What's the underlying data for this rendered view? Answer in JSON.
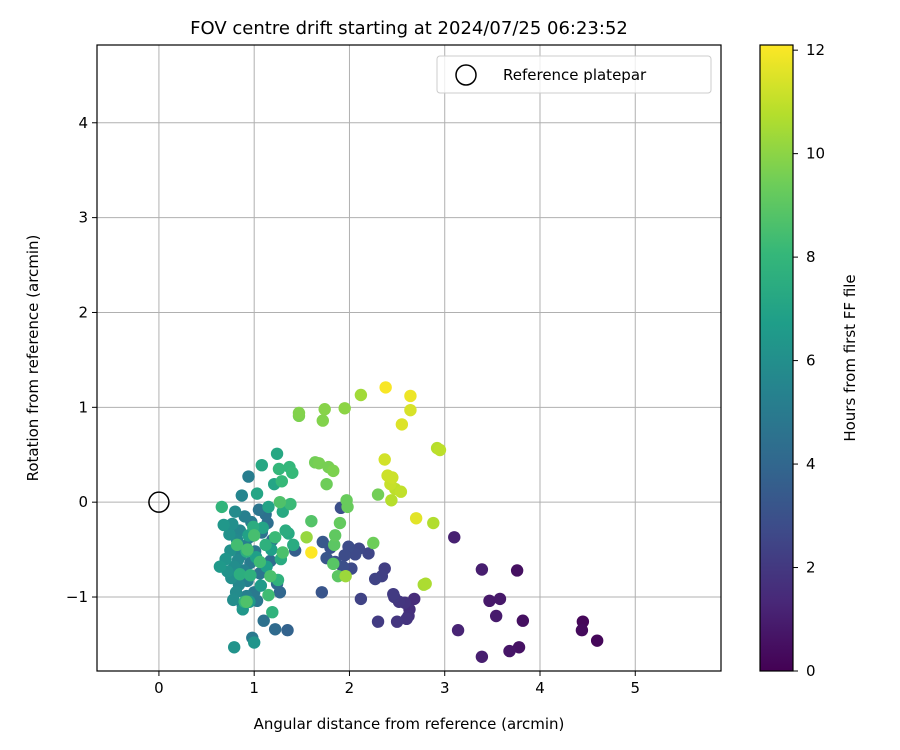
{
  "chart_data": {
    "type": "scatter",
    "title": "FOV centre drift starting at 2024/07/25 06:23:52",
    "xlabel": "Angular distance from reference (arcmin)",
    "ylabel": "Rotation from reference (arcmin)",
    "xlim": [
      -0.65,
      5.9
    ],
    "ylim": [
      -1.78,
      4.82
    ],
    "xticks": [
      0,
      1,
      2,
      3,
      4,
      5
    ],
    "yticks": [
      -1,
      0,
      1,
      2,
      3,
      4
    ],
    "xtick_labels": [
      "0",
      "1",
      "2",
      "3",
      "4",
      "5"
    ],
    "ytick_labels": [
      "−1",
      "0",
      "1",
      "2",
      "3",
      "4"
    ],
    "grid": true,
    "legend": {
      "position": "top-right",
      "entries": [
        "Reference platepar"
      ]
    },
    "reference_point": {
      "x": 0,
      "y": 0,
      "label": "Reference platepar"
    },
    "colorbar": {
      "label": "Hours from first FF file",
      "min": 0,
      "max": 12.1,
      "ticks": [
        0,
        2,
        4,
        6,
        8,
        10,
        12
      ],
      "tick_labels": [
        "0",
        "2",
        "4",
        "6",
        "8",
        "10",
        "12"
      ],
      "colormap": "viridis"
    },
    "series": [
      {
        "color_value": "hours",
        "points": [
          {
            "x": 4.6,
            "y": -1.46,
            "c": 0.2
          },
          {
            "x": 4.45,
            "y": -1.26,
            "c": 0.2
          },
          {
            "x": 4.44,
            "y": -1.35,
            "c": 0.3
          },
          {
            "x": 3.82,
            "y": -1.25,
            "c": 0.5
          },
          {
            "x": 3.78,
            "y": -1.53,
            "c": 0.6
          },
          {
            "x": 3.76,
            "y": -0.72,
            "c": 0.5
          },
          {
            "x": 3.68,
            "y": -1.57,
            "c": 0.7
          },
          {
            "x": 3.58,
            "y": -1.02,
            "c": 0.8
          },
          {
            "x": 3.54,
            "y": -1.2,
            "c": 0.9
          },
          {
            "x": 3.47,
            "y": -1.04,
            "c": 0.8
          },
          {
            "x": 3.39,
            "y": -0.71,
            "c": 1.0
          },
          {
            "x": 3.39,
            "y": -1.63,
            "c": 1.0
          },
          {
            "x": 3.14,
            "y": -1.35,
            "c": 1.2
          },
          {
            "x": 3.1,
            "y": -0.37,
            "c": 1.1
          },
          {
            "x": 2.68,
            "y": -1.02,
            "c": 1.5
          },
          {
            "x": 2.63,
            "y": -1.13,
            "c": 1.6
          },
          {
            "x": 2.62,
            "y": -1.2,
            "c": 1.7
          },
          {
            "x": 2.6,
            "y": -1.23,
            "c": 1.8
          },
          {
            "x": 2.58,
            "y": -1.06,
            "c": 1.8
          },
          {
            "x": 2.52,
            "y": -1.05,
            "c": 1.9
          },
          {
            "x": 2.5,
            "y": -1.26,
            "c": 1.9
          },
          {
            "x": 2.47,
            "y": -1.0,
            "c": 2.0
          },
          {
            "x": 2.46,
            "y": -0.97,
            "c": 2.1
          },
          {
            "x": 2.37,
            "y": -0.7,
            "c": 2.2
          },
          {
            "x": 2.34,
            "y": -0.78,
            "c": 2.3
          },
          {
            "x": 2.3,
            "y": -1.26,
            "c": 2.1
          },
          {
            "x": 2.27,
            "y": -0.81,
            "c": 2.4
          },
          {
            "x": 2.2,
            "y": -0.54,
            "c": 2.5
          },
          {
            "x": 2.12,
            "y": -1.02,
            "c": 2.4
          },
          {
            "x": 2.1,
            "y": -0.49,
            "c": 2.6
          },
          {
            "x": 2.06,
            "y": -0.55,
            "c": 2.7
          },
          {
            "x": 2.02,
            "y": -0.7,
            "c": 2.7
          },
          {
            "x": 1.99,
            "y": -0.47,
            "c": 2.8
          },
          {
            "x": 1.95,
            "y": -0.56,
            "c": 2.8
          },
          {
            "x": 1.93,
            "y": -0.68,
            "c": 2.9
          },
          {
            "x": 1.91,
            "y": -0.06,
            "c": 2.9
          },
          {
            "x": 1.85,
            "y": -0.63,
            "c": 3.0
          },
          {
            "x": 1.8,
            "y": -0.48,
            "c": 3.1
          },
          {
            "x": 1.76,
            "y": -0.59,
            "c": 3.2
          },
          {
            "x": 1.72,
            "y": -0.42,
            "c": 3.3
          },
          {
            "x": 1.71,
            "y": -0.95,
            "c": 3.2
          },
          {
            "x": 1.43,
            "y": -0.51,
            "c": 3.6
          },
          {
            "x": 1.35,
            "y": -1.35,
            "c": 3.8
          },
          {
            "x": 1.27,
            "y": -0.95,
            "c": 4.0
          },
          {
            "x": 1.24,
            "y": -0.86,
            "c": 4.1
          },
          {
            "x": 1.22,
            "y": -1.34,
            "c": 4.2
          },
          {
            "x": 1.19,
            "y": -0.4,
            "c": 4.2
          },
          {
            "x": 1.17,
            "y": -0.62,
            "c": 4.3
          },
          {
            "x": 1.14,
            "y": -0.22,
            "c": 4.4
          },
          {
            "x": 1.12,
            "y": -0.13,
            "c": 4.5
          },
          {
            "x": 1.1,
            "y": -1.25,
            "c": 4.5
          },
          {
            "x": 1.08,
            "y": -0.32,
            "c": 4.6
          },
          {
            "x": 1.06,
            "y": -0.75,
            "c": 4.7
          },
          {
            "x": 1.05,
            "y": -0.08,
            "c": 4.7
          },
          {
            "x": 1.03,
            "y": -1.04,
            "c": 4.8
          },
          {
            "x": 1.01,
            "y": -0.52,
            "c": 4.8
          },
          {
            "x": 1.0,
            "y": -0.95,
            "c": 4.9
          },
          {
            "x": 0.98,
            "y": -1.43,
            "c": 4.9
          },
          {
            "x": 0.97,
            "y": -0.21,
            "c": 5.0
          },
          {
            "x": 0.96,
            "y": -0.64,
            "c": 5.0
          },
          {
            "x": 0.95,
            "y": -0.37,
            "c": 5.1
          },
          {
            "x": 0.94,
            "y": 0.27,
            "c": 5.1
          },
          {
            "x": 0.93,
            "y": -0.83,
            "c": 5.2
          },
          {
            "x": 0.92,
            "y": -0.99,
            "c": 5.2
          },
          {
            "x": 0.91,
            "y": -0.46,
            "c": 5.3
          },
          {
            "x": 0.9,
            "y": -0.15,
            "c": 5.3
          },
          {
            "x": 0.89,
            "y": -0.72,
            "c": 5.4
          },
          {
            "x": 0.88,
            "y": -1.09,
            "c": 5.4
          },
          {
            "x": 0.87,
            "y": 0.07,
            "c": 5.5
          },
          {
            "x": 0.86,
            "y": -0.56,
            "c": 5.5
          },
          {
            "x": 0.85,
            "y": -0.3,
            "c": 5.6
          },
          {
            "x": 0.84,
            "y": -0.87,
            "c": 5.6
          },
          {
            "x": 0.83,
            "y": -0.61,
            "c": 5.7
          },
          {
            "x": 0.82,
            "y": -0.4,
            "c": 5.7
          },
          {
            "x": 0.81,
            "y": -0.95,
            "c": 5.8
          },
          {
            "x": 0.8,
            "y": -0.1,
            "c": 5.8
          },
          {
            "x": 0.79,
            "y": -0.68,
            "c": 5.9
          },
          {
            "x": 0.78,
            "y": -1.03,
            "c": 5.9
          },
          {
            "x": 0.77,
            "y": -0.23,
            "c": 6.0
          },
          {
            "x": 0.76,
            "y": -0.8,
            "c": 6.0
          },
          {
            "x": 0.75,
            "y": -0.51,
            "c": 6.1
          },
          {
            "x": 0.74,
            "y": -0.34,
            "c": 6.1
          },
          {
            "x": 0.72,
            "y": -0.73,
            "c": 6.2
          },
          {
            "x": 0.7,
            "y": -0.6,
            "c": 6.3
          },
          {
            "x": 0.68,
            "y": -0.24,
            "c": 6.4
          },
          {
            "x": 0.64,
            "y": -0.68,
            "c": 6.5
          },
          {
            "x": 0.79,
            "y": -1.53,
            "c": 6.2
          },
          {
            "x": 1.0,
            "y": -1.48,
            "c": 6.3
          },
          {
            "x": 0.88,
            "y": -1.13,
            "c": 6.4
          },
          {
            "x": 0.95,
            "y": -1.05,
            "c": 6.5
          },
          {
            "x": 1.07,
            "y": -0.88,
            "c": 6.6
          },
          {
            "x": 1.13,
            "y": -0.68,
            "c": 6.7
          },
          {
            "x": 1.18,
            "y": -0.5,
            "c": 6.8
          },
          {
            "x": 1.02,
            "y": -0.58,
            "c": 6.8
          },
          {
            "x": 0.94,
            "y": -0.35,
            "c": 6.9
          },
          {
            "x": 1.09,
            "y": -0.27,
            "c": 7.0
          },
          {
            "x": 1.15,
            "y": -0.05,
            "c": 7.0
          },
          {
            "x": 1.03,
            "y": 0.09,
            "c": 7.1
          },
          {
            "x": 1.21,
            "y": 0.19,
            "c": 7.1
          },
          {
            "x": 1.08,
            "y": 0.39,
            "c": 7.2
          },
          {
            "x": 1.24,
            "y": 0.51,
            "c": 7.2
          },
          {
            "x": 1.3,
            "y": -0.1,
            "c": 7.3
          },
          {
            "x": 1.36,
            "y": -0.33,
            "c": 7.3
          },
          {
            "x": 1.41,
            "y": -0.45,
            "c": 7.4
          },
          {
            "x": 1.28,
            "y": -0.6,
            "c": 7.4
          },
          {
            "x": 1.33,
            "y": -0.3,
            "c": 7.5
          },
          {
            "x": 0.99,
            "y": -0.26,
            "c": 7.5
          },
          {
            "x": 0.92,
            "y": -0.52,
            "c": 7.6
          },
          {
            "x": 0.85,
            "y": -0.76,
            "c": 7.6
          },
          {
            "x": 0.96,
            "y": -0.77,
            "c": 7.7
          },
          {
            "x": 1.12,
            "y": -0.45,
            "c": 7.7
          },
          {
            "x": 1.25,
            "y": -0.82,
            "c": 7.8
          },
          {
            "x": 1.19,
            "y": -1.16,
            "c": 7.8
          },
          {
            "x": 0.9,
            "y": -1.05,
            "c": 7.9
          },
          {
            "x": 0.66,
            "y": -0.05,
            "c": 7.9
          },
          {
            "x": 1.37,
            "y": 0.37,
            "c": 8.0
          },
          {
            "x": 1.26,
            "y": 0.35,
            "c": 8.0
          },
          {
            "x": 1.29,
            "y": 0.22,
            "c": 8.1
          },
          {
            "x": 1.4,
            "y": 0.31,
            "c": 8.1
          },
          {
            "x": 1.38,
            "y": -0.02,
            "c": 8.2
          },
          {
            "x": 1.22,
            "y": -0.37,
            "c": 8.2
          },
          {
            "x": 1.06,
            "y": -0.63,
            "c": 8.3
          },
          {
            "x": 1.15,
            "y": -0.98,
            "c": 8.3
          },
          {
            "x": 0.82,
            "y": -0.45,
            "c": 8.4
          },
          {
            "x": 0.93,
            "y": -0.5,
            "c": 8.5
          },
          {
            "x": 1.0,
            "y": -0.35,
            "c": 8.5
          },
          {
            "x": 1.17,
            "y": -0.78,
            "c": 8.6
          },
          {
            "x": 1.3,
            "y": -0.53,
            "c": 8.6
          },
          {
            "x": 1.27,
            "y": 0.0,
            "c": 8.7
          },
          {
            "x": 0.92,
            "y": -1.05,
            "c": 8.7
          },
          {
            "x": 1.6,
            "y": -0.2,
            "c": 8.8
          },
          {
            "x": 1.83,
            "y": -0.65,
            "c": 8.9
          },
          {
            "x": 1.84,
            "y": -0.45,
            "c": 9.0
          },
          {
            "x": 1.88,
            "y": -0.78,
            "c": 9.0
          },
          {
            "x": 1.85,
            "y": -0.35,
            "c": 9.1
          },
          {
            "x": 1.9,
            "y": -0.22,
            "c": 9.2
          },
          {
            "x": 1.97,
            "y": 0.02,
            "c": 9.3
          },
          {
            "x": 1.98,
            "y": -0.05,
            "c": 9.3
          },
          {
            "x": 2.25,
            "y": -0.43,
            "c": 9.4
          },
          {
            "x": 2.3,
            "y": 0.08,
            "c": 9.5
          },
          {
            "x": 1.76,
            "y": 0.19,
            "c": 9.4
          },
          {
            "x": 1.64,
            "y": 0.42,
            "c": 9.5
          },
          {
            "x": 1.68,
            "y": 0.41,
            "c": 9.6
          },
          {
            "x": 1.78,
            "y": 0.37,
            "c": 9.6
          },
          {
            "x": 1.83,
            "y": 0.33,
            "c": 9.7
          },
          {
            "x": 1.47,
            "y": 0.91,
            "c": 9.7
          },
          {
            "x": 1.47,
            "y": 0.94,
            "c": 9.8
          },
          {
            "x": 1.72,
            "y": 0.86,
            "c": 9.8
          },
          {
            "x": 1.74,
            "y": 0.98,
            "c": 9.9
          },
          {
            "x": 1.95,
            "y": 0.99,
            "c": 10.0
          },
          {
            "x": 2.12,
            "y": 1.13,
            "c": 10.4
          },
          {
            "x": 1.55,
            "y": -0.37,
            "c": 10.2
          },
          {
            "x": 1.96,
            "y": -0.78,
            "c": 10.3
          },
          {
            "x": 2.78,
            "y": -0.87,
            "c": 10.5
          },
          {
            "x": 2.8,
            "y": -0.86,
            "c": 10.6
          },
          {
            "x": 2.88,
            "y": -0.22,
            "c": 10.7
          },
          {
            "x": 2.92,
            "y": 0.57,
            "c": 10.8
          },
          {
            "x": 2.95,
            "y": 0.55,
            "c": 10.9
          },
          {
            "x": 2.44,
            "y": 0.02,
            "c": 10.8
          },
          {
            "x": 2.48,
            "y": 0.14,
            "c": 10.9
          },
          {
            "x": 2.54,
            "y": 0.11,
            "c": 11.0
          },
          {
            "x": 2.43,
            "y": 0.19,
            "c": 11.1
          },
          {
            "x": 2.4,
            "y": 0.28,
            "c": 11.2
          },
          {
            "x": 2.45,
            "y": 0.26,
            "c": 11.2
          },
          {
            "x": 2.37,
            "y": 0.45,
            "c": 11.3
          },
          {
            "x": 2.64,
            "y": 0.97,
            "c": 11.4
          },
          {
            "x": 2.55,
            "y": 0.82,
            "c": 11.5
          },
          {
            "x": 2.7,
            "y": -0.17,
            "c": 11.6
          },
          {
            "x": 2.64,
            "y": 1.12,
            "c": 11.8
          },
          {
            "x": 2.38,
            "y": 1.21,
            "c": 12.0
          },
          {
            "x": 1.6,
            "y": -0.53,
            "c": 12.1
          }
        ]
      }
    ]
  }
}
